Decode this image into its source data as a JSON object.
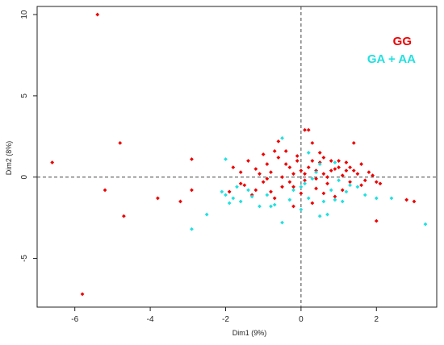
{
  "chart_data": {
    "type": "scatter",
    "xlabel": "Dim1 (9%)",
    "ylabel": "Dim2 (8%)",
    "xlim": [
      -7,
      3.6
    ],
    "ylim": [
      -8,
      10.5
    ],
    "x_ticks": [
      "-6",
      "-4",
      "-2",
      "0",
      "2"
    ],
    "y_ticks": [
      "-5",
      "0",
      "5",
      "10"
    ],
    "x_tick_values": [
      -6,
      -4,
      -2,
      0,
      2
    ],
    "y_tick_values": [
      -5,
      0,
      5,
      10
    ],
    "reference_lines": {
      "x": 0,
      "y": 0,
      "style": "dashed"
    },
    "grid": false,
    "legend_position": "top-right",
    "series": [
      {
        "name": "GG",
        "color": "#ee0000",
        "points": [
          [
            -5.4,
            10.0
          ],
          [
            -6.6,
            0.9
          ],
          [
            -4.8,
            2.1
          ],
          [
            -5.2,
            -0.8
          ],
          [
            -4.7,
            -2.4
          ],
          [
            -5.8,
            -7.2
          ],
          [
            -3.8,
            -1.3
          ],
          [
            -3.2,
            -1.5
          ],
          [
            -2.9,
            1.1
          ],
          [
            -2.9,
            -0.8
          ],
          [
            -1.8,
            0.6
          ],
          [
            -1.6,
            0.3
          ],
          [
            -1.5,
            -0.5
          ],
          [
            -1.4,
            1.0
          ],
          [
            -1.3,
            -1.1
          ],
          [
            -1.2,
            0.5
          ],
          [
            -1.0,
            -0.3
          ],
          [
            -1.0,
            1.4
          ],
          [
            -0.9,
            0.8
          ],
          [
            -0.8,
            0.3
          ],
          [
            -0.7,
            1.6
          ],
          [
            -0.6,
            1.2
          ],
          [
            -0.5,
            0.0
          ],
          [
            -0.5,
            -0.6
          ],
          [
            -0.4,
            1.6
          ],
          [
            -0.3,
            0.6
          ],
          [
            -0.2,
            0.2
          ],
          [
            -0.2,
            -0.6
          ],
          [
            -0.1,
            1.0
          ],
          [
            0.0,
            0.4
          ],
          [
            0.1,
            -0.2
          ],
          [
            0.1,
            2.9
          ],
          [
            0.2,
            2.9
          ],
          [
            0.3,
            2.1
          ],
          [
            0.3,
            1.0
          ],
          [
            0.4,
            0.4
          ],
          [
            0.4,
            -0.7
          ],
          [
            0.5,
            1.5
          ],
          [
            0.6,
            0.2
          ],
          [
            0.7,
            -0.4
          ],
          [
            0.8,
            1.0
          ],
          [
            0.9,
            0.5
          ],
          [
            0.9,
            -1.2
          ],
          [
            1.0,
            0.6
          ],
          [
            1.1,
            0.1
          ],
          [
            1.2,
            0.9
          ],
          [
            1.3,
            -0.3
          ],
          [
            1.4,
            0.4
          ],
          [
            1.5,
            0.2
          ],
          [
            1.6,
            0.8
          ],
          [
            1.7,
            -0.2
          ],
          [
            1.8,
            0.3
          ],
          [
            1.9,
            0.1
          ],
          [
            2.0,
            -0.3
          ],
          [
            2.1,
            -0.4
          ],
          [
            1.4,
            2.1
          ],
          [
            2.0,
            -2.7
          ],
          [
            2.8,
            -1.4
          ],
          [
            3.0,
            -1.5
          ],
          [
            -0.7,
            -1.3
          ],
          [
            -0.2,
            -1.8
          ],
          [
            0.3,
            -1.6
          ],
          [
            0.6,
            -1.0
          ],
          [
            -1.2,
            -0.8
          ],
          [
            -0.4,
            0.8
          ],
          [
            0.0,
            -1.0
          ],
          [
            -0.9,
            -0.1
          ],
          [
            -0.6,
            2.2
          ],
          [
            0.2,
            0.6
          ],
          [
            0.5,
            0.9
          ],
          [
            1.1,
            -0.8
          ],
          [
            1.6,
            -0.5
          ],
          [
            -1.9,
            -0.9
          ],
          [
            -1.6,
            -0.4
          ],
          [
            -1.1,
            0.2
          ],
          [
            -0.8,
            -0.9
          ],
          [
            -0.3,
            -0.3
          ],
          [
            0.1,
            0.2
          ],
          [
            0.7,
            0.0
          ],
          [
            1.2,
            0.4
          ],
          [
            0.4,
            -0.1
          ],
          [
            0.8,
            0.4
          ],
          [
            1.3,
            0.6
          ],
          [
            -0.1,
            1.3
          ],
          [
            0.6,
            1.2
          ],
          [
            1.0,
            1.0
          ]
        ]
      },
      {
        "name": "GA + AA",
        "color": "#22e0e0",
        "points": [
          [
            -2.1,
            -0.9
          ],
          [
            -2.0,
            -1.1
          ],
          [
            -1.9,
            -1.6
          ],
          [
            -1.8,
            -1.3
          ],
          [
            -1.7,
            -0.6
          ],
          [
            -1.4,
            -0.8
          ],
          [
            -1.3,
            -1.2
          ],
          [
            -1.1,
            -1.8
          ],
          [
            -0.8,
            -1.8
          ],
          [
            -0.7,
            -1.7
          ],
          [
            -0.5,
            -2.8
          ],
          [
            -0.3,
            -1.4
          ],
          [
            -0.2,
            -0.8
          ],
          [
            0.0,
            -2.0
          ],
          [
            0.1,
            -0.4
          ],
          [
            0.2,
            -1.3
          ],
          [
            0.3,
            -0.1
          ],
          [
            0.4,
            0.3
          ],
          [
            0.5,
            -2.4
          ],
          [
            0.6,
            -1.5
          ],
          [
            0.7,
            -2.3
          ],
          [
            0.8,
            -0.8
          ],
          [
            0.9,
            -1.4
          ],
          [
            1.0,
            -0.2
          ],
          [
            1.1,
            -1.5
          ],
          [
            1.3,
            -0.5
          ],
          [
            1.5,
            -0.6
          ],
          [
            1.7,
            -1.1
          ],
          [
            2.0,
            -1.3
          ],
          [
            2.4,
            -1.3
          ],
          [
            3.3,
            -2.9
          ],
          [
            -2.9,
            -3.2
          ],
          [
            -2.5,
            -2.3
          ],
          [
            -2.0,
            1.1
          ],
          [
            -0.5,
            2.4
          ],
          [
            0.2,
            1.5
          ],
          [
            0.5,
            0.8
          ],
          [
            0.9,
            0.9
          ],
          [
            1.2,
            -0.9
          ],
          [
            -0.9,
            -1.1
          ],
          [
            -1.6,
            -1.5
          ],
          [
            0.0,
            -0.6
          ]
        ]
      }
    ]
  }
}
